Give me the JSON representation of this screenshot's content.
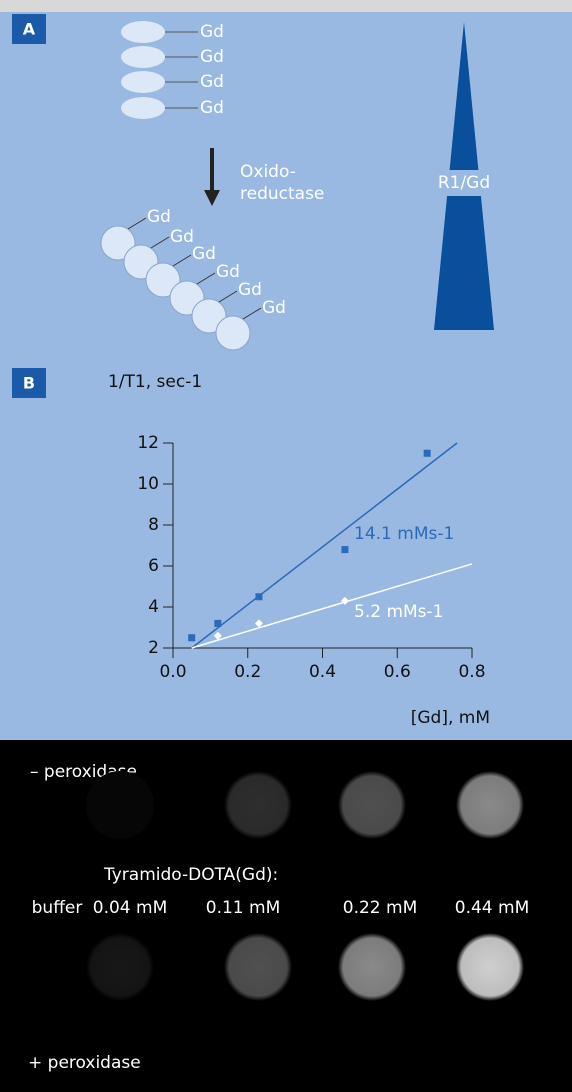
{
  "panel_a": {
    "label": "A",
    "chain_labels": [
      "Gd",
      "Gd",
      "Gd",
      "Gd"
    ],
    "arrow_label": [
      "Oxido-",
      "reductase"
    ],
    "bound_labels": [
      "Gd",
      "Gd",
      "Gd",
      "Gd",
      "Gd",
      "Gd"
    ],
    "triangle_label": "R1/Gd"
  },
  "panel_b": {
    "label": "B"
  },
  "chart_data": {
    "type": "scatter",
    "y_label": "1/T1, sec-1",
    "x_label": "[Gd], mM",
    "xlim": [
      0,
      0.8
    ],
    "ylim": [
      2,
      12
    ],
    "xticks": [
      {
        "value": 0,
        "label": "0.0"
      },
      0.2,
      0.4,
      0.6,
      0.8
    ],
    "yticks": [
      2,
      4,
      6,
      8,
      10,
      12
    ],
    "series": [
      {
        "color": "#2a6ab8",
        "marker": "square",
        "x": [
          0.05,
          0.12,
          0.23,
          0.46,
          0.68
        ],
        "values": [
          2.5,
          3.2,
          4.5,
          6.8,
          11.5
        ],
        "fit_x": [
          0.05,
          0.76
        ],
        "fit_y": [
          2,
          12
        ],
        "annotation": "14.1 mMs-1"
      },
      {
        "color": "#ffffff",
        "marker": "diamond",
        "x": [
          0.12,
          0.23,
          0.46
        ],
        "values": [
          2.6,
          3.2,
          4.3
        ],
        "fit_x": [
          0.05,
          0.8
        ],
        "fit_y": [
          2,
          6.1
        ],
        "annotation": "5.2 mMs-1"
      }
    ]
  },
  "panel_c": {
    "top_label": "– peroxidase",
    "compound_label": "Tyramido-DOTA(Gd):",
    "columns": [
      "buffer",
      "0.04 mM",
      "0.11 mM",
      "0.22 mM",
      "0.44 mM"
    ],
    "bottom_label": "+ peroxidase"
  }
}
